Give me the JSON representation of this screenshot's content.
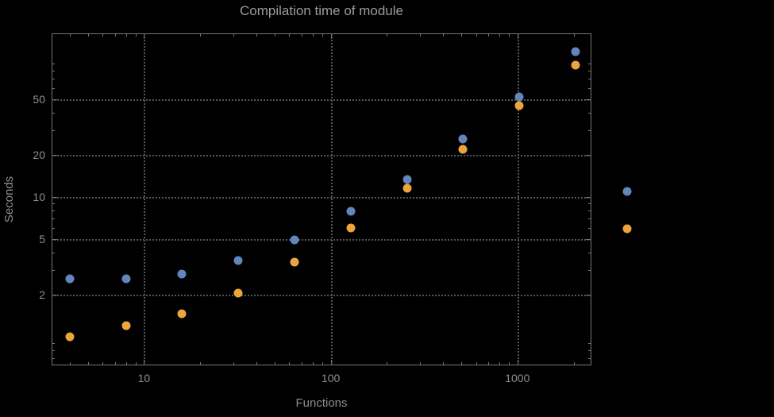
{
  "title": "Compilation time of module",
  "chart_data": {
    "type": "scatter",
    "title": "Compilation time of module",
    "xlabel": "Functions",
    "ylabel": "Seconds",
    "x_scale": "log",
    "y_scale": "log",
    "xlim": [
      3.2,
      2490
    ],
    "ylim": [
      0.62,
      148
    ],
    "grid": "dotted gray at major ticks",
    "x_ticks": [
      {
        "value": 10,
        "label": "10"
      },
      {
        "value": 100,
        "label": "100"
      },
      {
        "value": 1000,
        "label": "1000"
      }
    ],
    "y_ticks": [
      {
        "value": 2,
        "label": "2"
      },
      {
        "value": 5,
        "label": "5"
      },
      {
        "value": 10,
        "label": "10"
      },
      {
        "value": 20,
        "label": "20"
      },
      {
        "value": 50,
        "label": "50"
      }
    ],
    "x": [
      4,
      8,
      16,
      32,
      64,
      128,
      256,
      512,
      1024,
      2048
    ],
    "series": [
      {
        "name": "blue-series",
        "color": "#6286bb",
        "values": [
          2.6,
          2.6,
          2.8,
          3.5,
          4.9,
          7.9,
          13.3,
          26,
          52,
          110
        ]
      },
      {
        "name": "orange-series",
        "color": "#eca53c",
        "values": [
          1.0,
          1.2,
          1.45,
          2.05,
          3.4,
          6.0,
          11.5,
          22,
          45,
          88
        ]
      }
    ],
    "legend": {
      "position": "right-outside",
      "markers": [
        {
          "series": 0,
          "color": "#6286bb"
        },
        {
          "series": 1,
          "color": "#eca53c"
        }
      ]
    }
  },
  "colors": {
    "background": "#000000",
    "frame": "#767676",
    "grid": "#565656",
    "title_text": "#9c9c9c",
    "axis_text": "#8f8f8f",
    "series_blue": "#6286bb",
    "series_orange": "#eca53c"
  }
}
